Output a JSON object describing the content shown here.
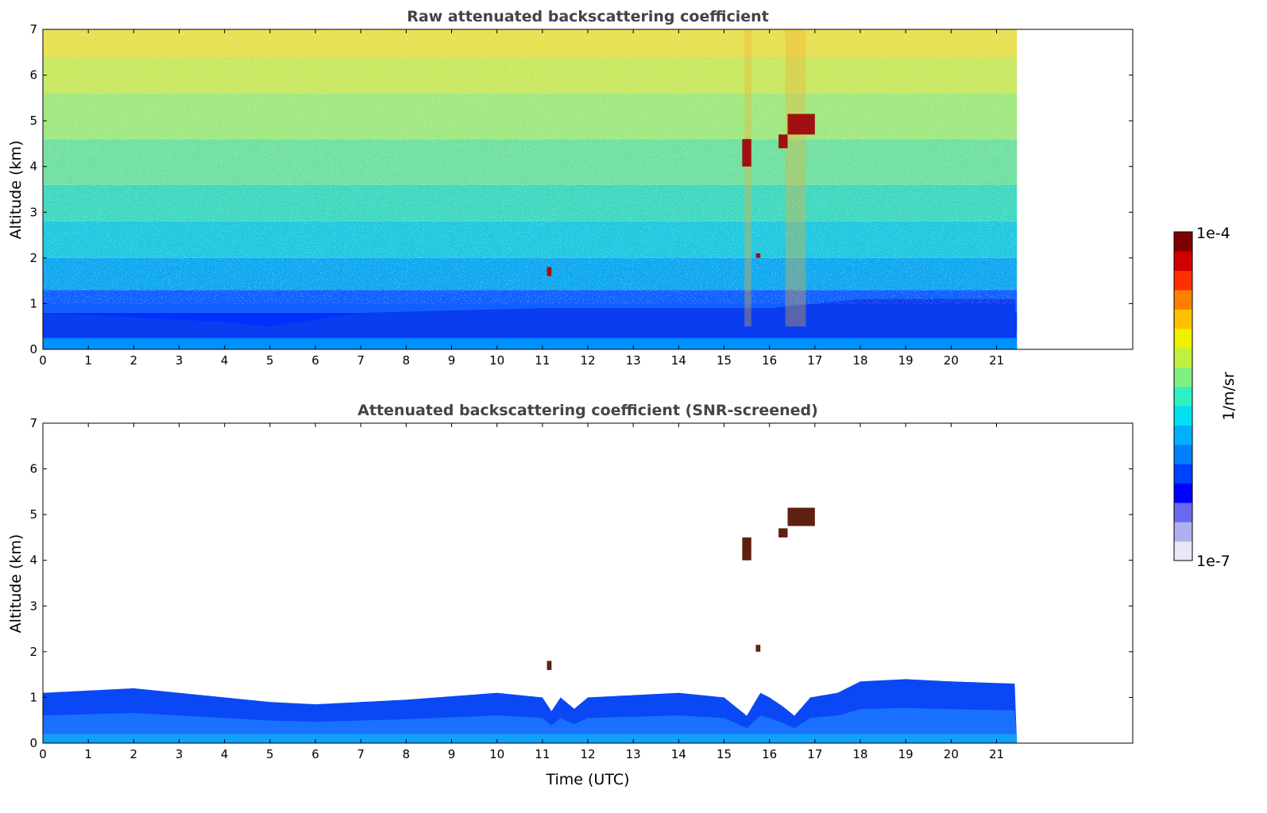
{
  "chart_data": [
    {
      "type": "heatmap",
      "title": "Raw attenuated backscattering coefficient",
      "xlabel": "",
      "ylabel": "Altitude (km)",
      "xlim": [
        0,
        24
      ],
      "ylim": [
        0,
        7
      ],
      "x_ticks": [
        0,
        1,
        2,
        3,
        4,
        5,
        6,
        7,
        8,
        9,
        10,
        11,
        12,
        13,
        14,
        15,
        16,
        17,
        18,
        19,
        20,
        21
      ],
      "y_ticks": [
        0,
        1,
        2,
        3,
        4,
        5,
        6,
        7
      ],
      "data_extent_x": [
        0,
        21.45
      ],
      "grid": false,
      "description_features": {
        "boundary_layer_top_km": [
          [
            0,
            0.8
          ],
          [
            4,
            0.6
          ],
          [
            5,
            0.5
          ],
          [
            7,
            0.8
          ],
          [
            11,
            0.9
          ],
          [
            16,
            0.9
          ],
          [
            18,
            1.1
          ],
          [
            21.45,
            1.1
          ]
        ],
        "clouds": [
          {
            "x": [
              15.4,
              15.6
            ],
            "y": [
              4.0,
              4.6
            ]
          },
          {
            "x": [
              16.2,
              16.4
            ],
            "y": [
              4.4,
              4.7
            ]
          },
          {
            "x": [
              16.4,
              17.0
            ],
            "y": [
              4.7,
              5.15
            ]
          },
          {
            "x": [
              15.7,
              15.8
            ],
            "y": [
              2.0,
              2.1
            ]
          },
          {
            "x": [
              11.1,
              11.2
            ],
            "y": [
              1.6,
              1.8
            ]
          }
        ]
      }
    },
    {
      "type": "heatmap",
      "title": "Attenuated backscattering coefficient (SNR-screened)",
      "xlabel": "Time (UTC)",
      "ylabel": "Altitude (km)",
      "xlim": [
        0,
        24
      ],
      "ylim": [
        0,
        7
      ],
      "x_ticks": [
        0,
        1,
        2,
        3,
        4,
        5,
        6,
        7,
        8,
        9,
        10,
        11,
        12,
        13,
        14,
        15,
        16,
        17,
        18,
        19,
        20,
        21
      ],
      "y_ticks": [
        0,
        1,
        2,
        3,
        4,
        5,
        6,
        7
      ],
      "data_extent_x": [
        0,
        21.45
      ],
      "grid": false,
      "description_features": {
        "layer_top_km": [
          [
            0,
            1.1
          ],
          [
            2,
            1.2
          ],
          [
            4,
            1.0
          ],
          [
            5,
            0.9
          ],
          [
            6,
            0.85
          ],
          [
            8,
            0.95
          ],
          [
            10,
            1.1
          ],
          [
            11,
            1.0
          ],
          [
            11.2,
            0.7
          ],
          [
            11.4,
            1.0
          ],
          [
            11.7,
            0.75
          ],
          [
            12,
            1.0
          ],
          [
            14,
            1.1
          ],
          [
            15,
            1.0
          ],
          [
            15.5,
            0.6
          ],
          [
            15.8,
            1.1
          ],
          [
            16,
            1.0
          ],
          [
            16.3,
            0.8
          ],
          [
            16.55,
            0.6
          ],
          [
            16.9,
            1.0
          ],
          [
            17.5,
            1.1
          ],
          [
            18,
            1.35
          ],
          [
            19,
            1.4
          ],
          [
            20,
            1.35
          ],
          [
            21.45,
            1.3
          ]
        ],
        "clouds": [
          {
            "x": [
              15.4,
              15.6
            ],
            "y": [
              4.0,
              4.5
            ]
          },
          {
            "x": [
              16.2,
              16.4
            ],
            "y": [
              4.5,
              4.7
            ]
          },
          {
            "x": [
              16.4,
              17.0
            ],
            "y": [
              4.75,
              5.15
            ]
          },
          {
            "x": [
              15.7,
              15.8
            ],
            "y": [
              2.0,
              2.15
            ]
          },
          {
            "x": [
              11.1,
              11.2
            ],
            "y": [
              1.6,
              1.8
            ]
          }
        ]
      }
    }
  ],
  "colorbar": {
    "max_label": "1e-4",
    "min_label": "1e-7",
    "unit_label": "1/m/sr",
    "colormap": [
      "#e8e8f8",
      "#b0b0f0",
      "#6a6af0",
      "#0000ff",
      "#0040ff",
      "#0080ff",
      "#00b0ff",
      "#00e0f0",
      "#30f0c0",
      "#80f080",
      "#c0f040",
      "#f0f000",
      "#ffc000",
      "#ff8000",
      "#ff3000",
      "#d00000",
      "#800000"
    ]
  }
}
